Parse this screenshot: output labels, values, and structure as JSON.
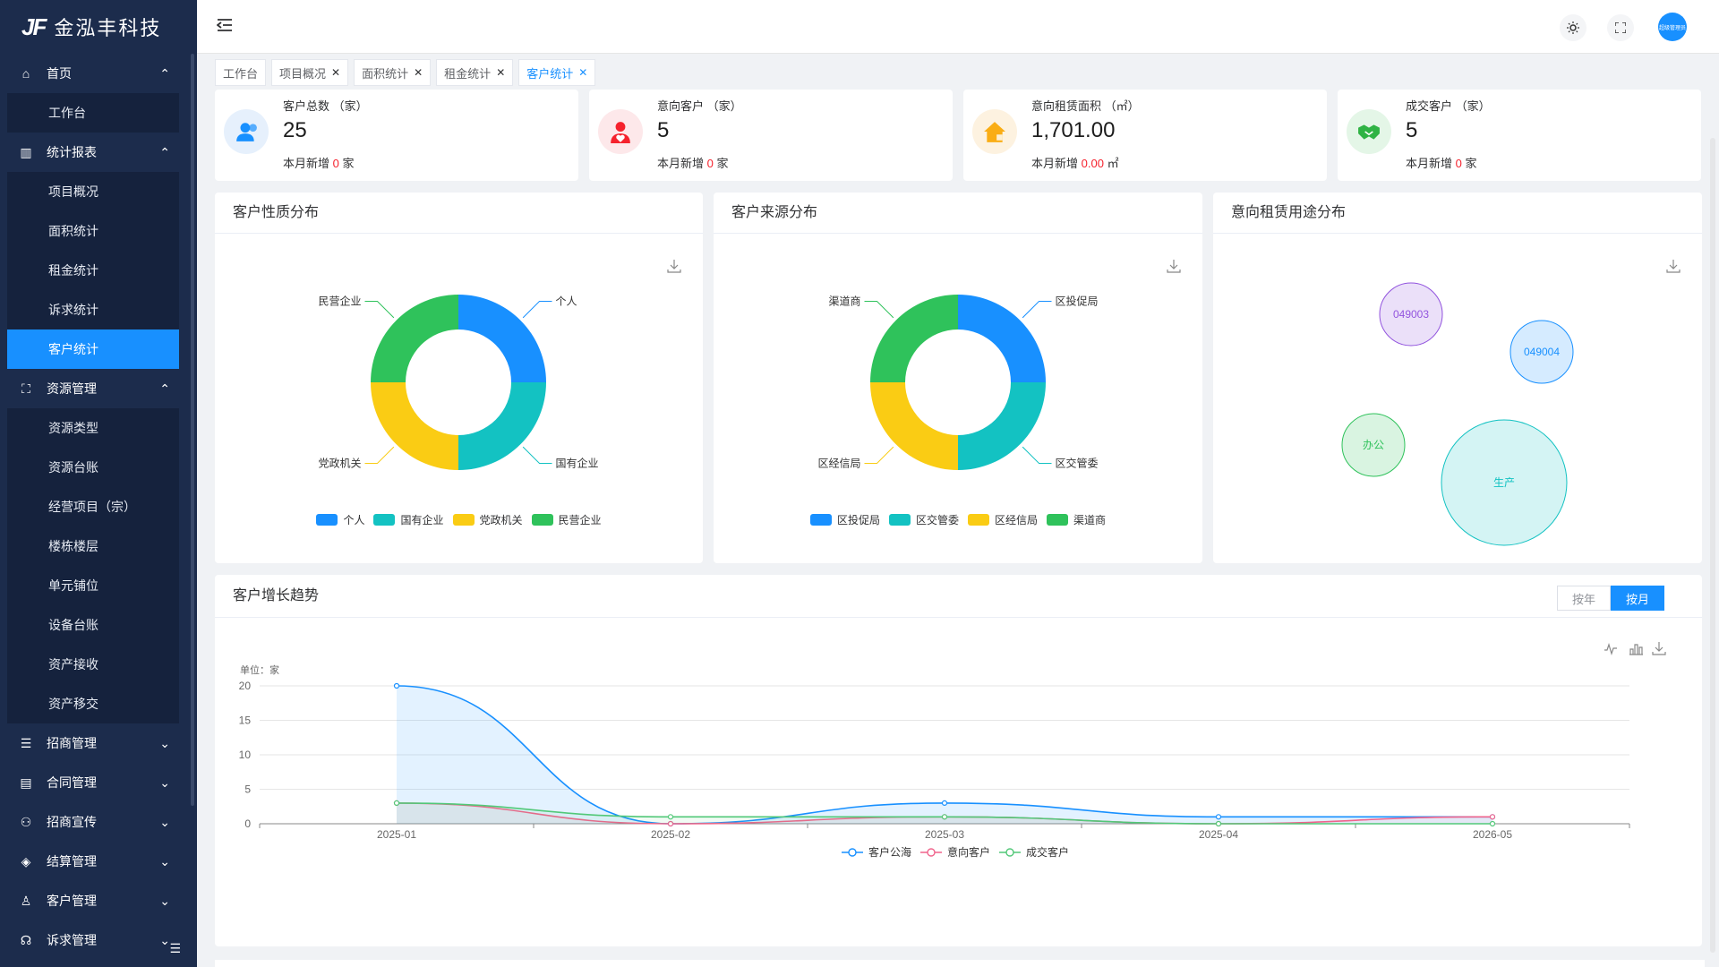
{
  "brand": {
    "logo_mark": "JF",
    "name": "金泓丰科技"
  },
  "sidebar": {
    "home": {
      "label": "首页",
      "children": [
        "工作台"
      ]
    },
    "reports": {
      "label": "统计报表",
      "children": [
        "项目概况",
        "面积统计",
        "租金统计",
        "诉求统计",
        "客户统计"
      ],
      "active": "客户统计"
    },
    "resources": {
      "label": "资源管理",
      "children": [
        "资源类型",
        "资源台账",
        "经营项目（宗）",
        "楼栋楼层",
        "单元铺位",
        "设备台账",
        "资产接收",
        "资产移交"
      ]
    },
    "collapsed": [
      "招商管理",
      "合同管理",
      "招商宣传",
      "结算管理",
      "客户管理",
      "诉求管理"
    ]
  },
  "header": {
    "avatar_text": "超级管理员"
  },
  "tabs": [
    {
      "label": "工作台",
      "closable": false
    },
    {
      "label": "项目概况",
      "closable": true
    },
    {
      "label": "面积统计",
      "closable": true
    },
    {
      "label": "租金统计",
      "closable": true
    },
    {
      "label": "客户统计",
      "closable": true,
      "active": true
    }
  ],
  "stats": [
    {
      "label": "客户总数 （家）",
      "value": "25",
      "sub_prefix": "本月新增",
      "sub_value": "0",
      "sub_unit": "家",
      "color": "#1890ff",
      "bg": "#e6f0fc",
      "icon": "users-icon"
    },
    {
      "label": "意向客户 （家）",
      "value": "5",
      "sub_prefix": "本月新增",
      "sub_value": "0",
      "sub_unit": "家",
      "color": "#f5222d",
      "bg": "#fde8ea",
      "icon": "heart-user-icon"
    },
    {
      "label": "意向租赁面积 （㎡）",
      "value": "1,701.00",
      "sub_prefix": "本月新增",
      "sub_value": "0.00",
      "sub_unit": "㎡",
      "color": "#faad14",
      "bg": "#fdf2e0",
      "icon": "house-icon"
    },
    {
      "label": "成交客户 （家）",
      "value": "5",
      "sub_prefix": "本月新增",
      "sub_value": "0",
      "sub_unit": "家",
      "color": "#2fb344",
      "bg": "#e4f6e7",
      "icon": "handshake-icon"
    }
  ],
  "cards": {
    "nature": "客户性质分布",
    "source": "客户来源分布",
    "usage": "意向租赁用途分布",
    "trend": "客户增长趋势"
  },
  "trend_toggle": {
    "year": "按年",
    "month": "按月"
  },
  "chart_data": [
    {
      "type": "pie",
      "variant": "donut",
      "title": "客户性质分布",
      "legend_position": "bottom",
      "labels": [
        "个人",
        "国有企业",
        "党政机关",
        "民营企业"
      ],
      "values": [
        1,
        1,
        1,
        1
      ],
      "colors": [
        "#1890ff",
        "#13c2c2",
        "#facc14",
        "#2fc25b"
      ]
    },
    {
      "type": "pie",
      "variant": "donut",
      "title": "客户来源分布",
      "legend_position": "bottom",
      "labels": [
        "区投促局",
        "区交管委",
        "区经信局",
        "渠道商"
      ],
      "values": [
        1,
        1,
        1,
        1
      ],
      "colors": [
        "#1890ff",
        "#13c2c2",
        "#facc14",
        "#2fc25b"
      ]
    },
    {
      "type": "scatter",
      "variant": "bubble",
      "title": "意向租赁用途分布",
      "labels": [
        "049003",
        "049004",
        "办公",
        "生产"
      ],
      "values": [
        1,
        1,
        1,
        3
      ],
      "colors": [
        "#9254de",
        "#1890ff",
        "#2fc25b",
        "#13c2c2"
      ]
    },
    {
      "type": "line",
      "title": "客户增长趋势",
      "ylabel": "单位：家",
      "ylim": [
        0,
        20
      ],
      "yticks": [
        0,
        5,
        10,
        15,
        20
      ],
      "categories": [
        "2025-01",
        "2025-02",
        "2025-03",
        "2025-04",
        "2026-05"
      ],
      "legend_position": "bottom",
      "series": [
        {
          "name": "客户公海",
          "values": [
            20,
            0,
            3,
            1,
            1
          ],
          "color": "#1890ff",
          "area": true
        },
        {
          "name": "意向客户",
          "values": [
            3,
            0,
            1,
            0,
            1
          ],
          "color": "#f0648c",
          "area": true
        },
        {
          "name": "成交客户",
          "values": [
            3,
            1,
            1,
            0,
            0
          ],
          "color": "#52c878",
          "area": true
        }
      ]
    }
  ]
}
